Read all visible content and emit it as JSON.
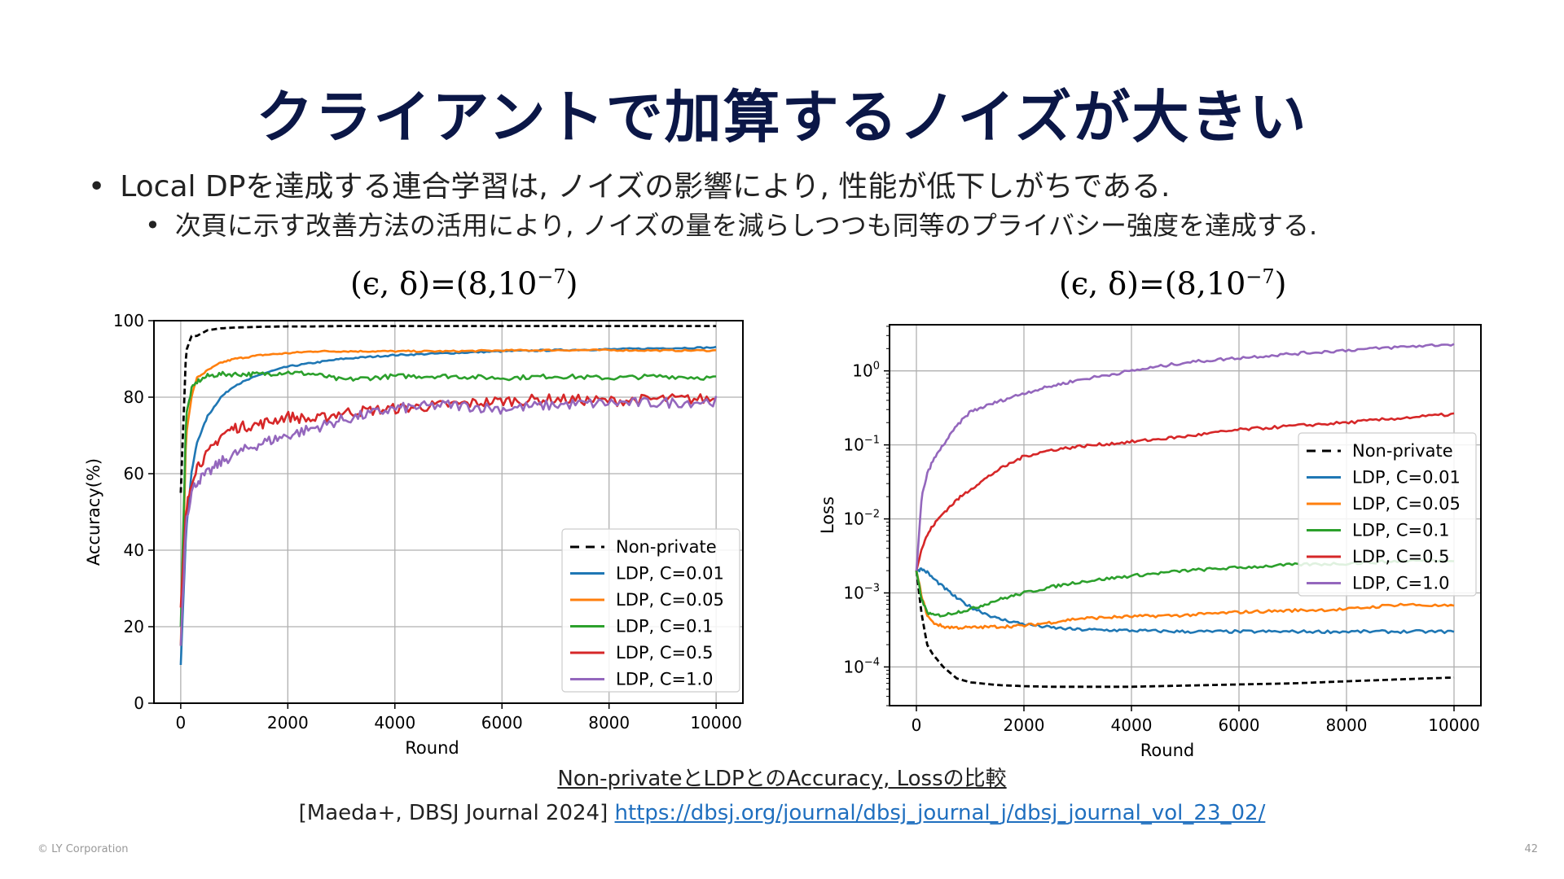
{
  "slide": {
    "title": "クライアントで加算するノイズが大きい",
    "bullets": [
      "Local DPを達成する連合学習は, ノイズの影響により, 性能が低下しがちである.",
      "次頁に示す改善方法の活用により, ノイズの量を減らしつつも同等のプライバシー強度を達成する."
    ],
    "bullet_glyph": "•",
    "param_label_left": "(ϵ, δ)=(8,10",
    "param_label_sup": "−7",
    "param_label_close": ")",
    "caption": "Non-privateとLDPとのAccuracy, Lossの比較",
    "reference_text": "[Maeda+, DBSJ Journal 2024] ",
    "reference_link": "https://dbsj.org/journal/dbsj_journal_j/dbsj_journal_vol_23_02/",
    "footer_copyright": "© LY Corporation",
    "page_number": "42"
  },
  "colors": {
    "title": "#0b1747",
    "non_private": "#000000",
    "c001": "#1f77b4",
    "c005": "#ff7f0e",
    "c01": "#2ca02c",
    "c05": "#d62728",
    "c10": "#9467bd",
    "link": "#1f6fbf"
  },
  "chart_data": [
    {
      "type": "line",
      "title": "(ϵ, δ)=(8,10^−7)",
      "xlabel": "Round",
      "ylabel": "Accuracy(%)",
      "xlim": [
        -500,
        10500
      ],
      "ylim": [
        0,
        100
      ],
      "xticks": [
        "0",
        "2000",
        "4000",
        "6000",
        "8000",
        "10000"
      ],
      "yticks": [
        "0",
        "20",
        "40",
        "60",
        "80",
        "100"
      ],
      "grid": true,
      "legend_position": "lower-right",
      "x": [
        0,
        100,
        200,
        300,
        500,
        750,
        1000,
        1500,
        2000,
        2500,
        3000,
        4000,
        5000,
        6000,
        7000,
        8000,
        9000,
        10000
      ],
      "series": [
        {
          "name": "Non-private",
          "style": "dashed",
          "values": [
            55,
            92,
            96,
            96,
            97.5,
            98,
            98.2,
            98.4,
            98.5,
            98.5,
            98.6,
            98.6,
            98.6,
            98.6,
            98.6,
            98.6,
            98.6,
            98.6
          ]
        },
        {
          "name": "LDP, C=0.01",
          "style": "solid",
          "values": [
            10,
            45,
            60,
            68,
            75,
            80,
            83,
            86,
            88,
            89,
            90,
            91,
            91.5,
            92,
            92.3,
            92.5,
            92.8,
            93
          ]
        },
        {
          "name": "LDP, C=0.05",
          "style": "solid",
          "values": [
            15,
            70,
            80,
            85,
            87,
            89,
            90,
            91,
            91.5,
            92,
            92,
            92,
            92,
            92.2,
            92.3,
            92.3,
            92.2,
            92.2
          ]
        },
        {
          "name": "LDP, C=0.1",
          "style": "solid",
          "values": [
            20,
            75,
            82,
            84,
            85.5,
            86,
            86,
            86,
            86.5,
            86,
            84.5,
            85.5,
            85.5,
            85,
            85.5,
            85,
            85.5,
            85
          ]
        },
        {
          "name": "LDP, C=0.5",
          "style": "solid",
          "values": [
            25,
            50,
            58,
            62,
            65,
            70,
            72,
            73,
            75,
            74,
            76,
            77,
            78,
            79,
            79.5,
            79,
            79.5,
            79.5
          ]
        },
        {
          "name": "LDP, C=1.0",
          "style": "solid",
          "values": [
            15,
            48,
            55,
            58,
            60,
            63,
            65,
            68,
            70,
            72,
            74,
            77,
            78,
            77,
            78,
            78.5,
            78.5,
            79
          ]
        }
      ]
    },
    {
      "type": "line",
      "title": "(ϵ, δ)=(8,10^−7)",
      "xlabel": "Round",
      "ylabel": "Loss",
      "yscale": "log",
      "xlim": [
        -500,
        10500
      ],
      "ylim": [
        3e-05,
        4.2
      ],
      "xticks": [
        "0",
        "2000",
        "4000",
        "6000",
        "8000",
        "10000"
      ],
      "yticks": [
        "10^-4",
        "10^-3",
        "10^-2",
        "10^-1",
        "10^0"
      ],
      "grid": true,
      "legend_position": "center-right",
      "x": [
        0,
        100,
        200,
        300,
        500,
        750,
        1000,
        1500,
        2000,
        2500,
        3000,
        4000,
        5000,
        6000,
        7000,
        8000,
        9000,
        10000
      ],
      "series": [
        {
          "name": "Non-private",
          "style": "dashed",
          "values": [
            0.002,
            0.0005,
            0.0002,
            0.00015,
            0.0001,
            7e-05,
            6.2e-05,
            5.7e-05,
            5.5e-05,
            5.4e-05,
            5.4e-05,
            5.4e-05,
            5.6e-05,
            5.8e-05,
            6e-05,
            6.4e-05,
            6.8e-05,
            7.2e-05
          ]
        },
        {
          "name": "LDP, C=0.01",
          "style": "solid",
          "values": [
            0.002,
            0.0021,
            0.0019,
            0.0016,
            0.0012,
            0.00085,
            0.00065,
            0.00045,
            0.00038,
            0.00034,
            0.00032,
            0.00031,
            0.0003,
            0.0003,
            0.0003,
            0.0003,
            0.0003,
            0.0003
          ]
        },
        {
          "name": "LDP, C=0.05",
          "style": "solid",
          "values": [
            0.002,
            0.0009,
            0.0005,
            0.0004,
            0.00035,
            0.00034,
            0.00034,
            0.00035,
            0.00036,
            0.0004,
            0.00045,
            0.00048,
            0.0005,
            0.00055,
            0.00058,
            0.0006,
            0.0007,
            0.00066
          ]
        },
        {
          "name": "LDP, C=0.1",
          "style": "solid",
          "values": [
            0.002,
            0.0008,
            0.00055,
            0.0005,
            0.0005,
            0.00055,
            0.0006,
            0.0008,
            0.001,
            0.0012,
            0.0014,
            0.0017,
            0.002,
            0.0022,
            0.0024,
            0.0025,
            0.0027,
            0.0028
          ]
        },
        {
          "name": "LDP, C=0.5",
          "style": "solid",
          "values": [
            0.002,
            0.004,
            0.006,
            0.008,
            0.012,
            0.018,
            0.025,
            0.045,
            0.07,
            0.085,
            0.095,
            0.11,
            0.13,
            0.16,
            0.18,
            0.2,
            0.23,
            0.26
          ]
        },
        {
          "name": "LDP, C=1.0",
          "style": "solid",
          "values": [
            0.002,
            0.02,
            0.04,
            0.06,
            0.1,
            0.18,
            0.28,
            0.38,
            0.5,
            0.62,
            0.75,
            1.0,
            1.3,
            1.5,
            1.7,
            1.9,
            2.1,
            2.3
          ]
        }
      ]
    }
  ]
}
